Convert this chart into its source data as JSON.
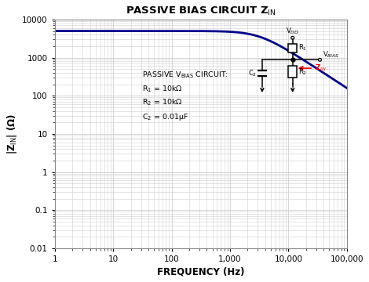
{
  "title": "PASSIVE BIAS CIRCUIT Z$_{\\mathrm{IN}}$",
  "xlabel": "FREQUENCY (Hz)",
  "ylabel": "|Z$_{\\mathrm{IN}}$| (Ω)",
  "xmin": 1,
  "xmax": 100000,
  "ymin": 0.01,
  "ymax": 10000,
  "R1": 10000,
  "R2": 10000,
  "C2": 1e-08,
  "line_color": "#00008B",
  "grid_color": "#d0d0d0",
  "bg_color": "#ffffff",
  "xtick_labels": [
    "1",
    "10",
    "100",
    "1,000",
    "10,000",
    "100,000"
  ],
  "xtick_vals": [
    1,
    10,
    100,
    1000,
    10000,
    100000
  ],
  "ytick_labels": [
    "0.01",
    "0.1",
    "1",
    "10",
    "100",
    "1000",
    "10000"
  ],
  "ytick_vals": [
    0.01,
    0.1,
    1,
    10,
    100,
    1000,
    10000
  ]
}
